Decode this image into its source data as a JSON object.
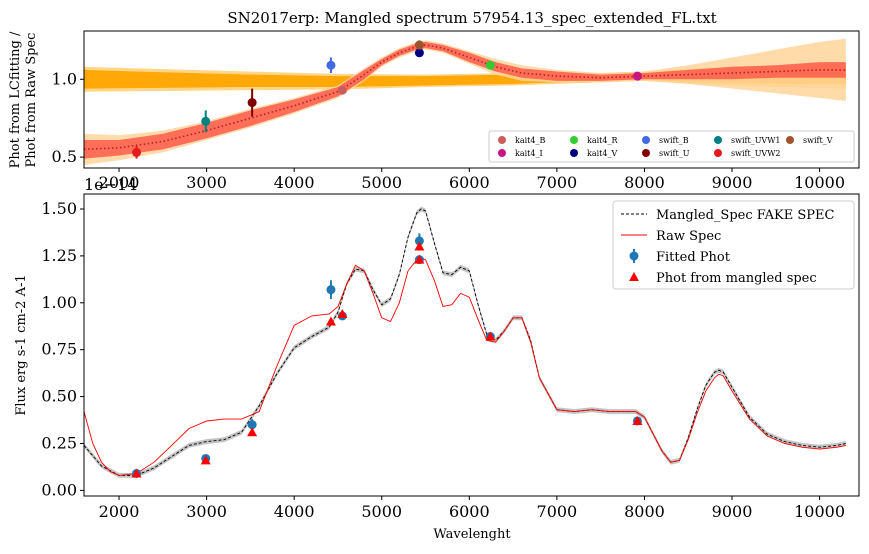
{
  "chart_data": [
    {
      "type": "line",
      "title": "SN2017erp: Mangled spectrum 57954.13_spec_extended_FL.txt",
      "ylabel_line1": "Phot from LCfitting /",
      "ylabel_line2": "Phot from Raw Spec",
      "xlim": [
        1600,
        10450
      ],
      "ylim": [
        0.43,
        1.31
      ],
      "xticks": [
        2000,
        3000,
        4000,
        5000,
        6000,
        7000,
        8000,
        9000,
        10000
      ],
      "yticks": [
        0.5,
        1.0
      ],
      "ytick_labels": [
        "0.5",
        "1.0"
      ],
      "offset_label": "1e−14",
      "ratio_curve": {
        "x": [
          1600,
          2000,
          2500,
          3000,
          3500,
          4000,
          4500,
          4800,
          5000,
          5200,
          5400,
          5500,
          5700,
          6000,
          6300,
          6600,
          7000,
          7500,
          8000,
          8500,
          9000,
          9500,
          10000,
          10300
        ],
        "y": [
          0.55,
          0.56,
          0.6,
          0.67,
          0.75,
          0.83,
          0.92,
          1.03,
          1.11,
          1.17,
          1.21,
          1.22,
          1.2,
          1.14,
          1.08,
          1.04,
          1.02,
          1.01,
          1.02,
          1.03,
          1.04,
          1.05,
          1.06,
          1.06
        ]
      },
      "ratio_band": {
        "x": [
          1600,
          2000,
          2500,
          3000,
          3500,
          4000,
          4500,
          4800,
          5000,
          5200,
          5400,
          5500,
          5700,
          6000,
          6300,
          6600,
          7000,
          7500,
          8000,
          8500,
          9000,
          9500,
          10000,
          10300
        ],
        "width": [
          0.06,
          0.05,
          0.05,
          0.05,
          0.05,
          0.04,
          0.03,
          0.03,
          0.02,
          0.02,
          0.02,
          0.02,
          0.02,
          0.03,
          0.03,
          0.03,
          0.03,
          0.02,
          0.02,
          0.03,
          0.04,
          0.04,
          0.05,
          0.05
        ]
      },
      "ratio_band_outer": {
        "x": [
          1600,
          2000,
          2500,
          3000,
          3500,
          4000,
          4500,
          4800,
          5000,
          5200,
          5400,
          5500,
          5700,
          6000,
          6300,
          6600,
          7000,
          7500,
          8000,
          8500,
          9000,
          9500,
          10000,
          10300
        ],
        "width": [
          0.1,
          0.08,
          0.07,
          0.06,
          0.06,
          0.05,
          0.04,
          0.04,
          0.03,
          0.03,
          0.03,
          0.03,
          0.03,
          0.04,
          0.05,
          0.05,
          0.04,
          0.03,
          0.03,
          0.06,
          0.1,
          0.14,
          0.18,
          0.2
        ]
      },
      "flat_band": {
        "x": [
          1600,
          2500,
          3500,
          4500,
          5500,
          6500,
          7500,
          8000,
          8500,
          9500,
          10300
        ],
        "center": [
          1.0,
          0.995,
          0.99,
          0.985,
          0.99,
          1.0,
          1.01,
          1.02,
          1.02,
          1.02,
          1.02
        ],
        "width": [
          0.06,
          0.05,
          0.04,
          0.035,
          0.03,
          0.03,
          0.02,
          0.02,
          0.04,
          0.05,
          0.05
        ]
      },
      "flat_band_outer": {
        "x": [
          1600,
          2500,
          3500,
          4500,
          5500,
          6500,
          7500,
          8000,
          8500,
          9500,
          10300
        ],
        "center": [
          1.0,
          0.995,
          0.99,
          0.985,
          0.99,
          1.0,
          1.01,
          1.02,
          1.02,
          1.02,
          1.02
        ],
        "width": [
          0.08,
          0.07,
          0.06,
          0.05,
          0.04,
          0.04,
          0.03,
          0.03,
          0.05,
          0.07,
          0.08
        ]
      },
      "points": [
        {
          "name": "kait4_B",
          "x": 4550,
          "y": 0.93,
          "err": 0.0,
          "color": "#cd5c5c"
        },
        {
          "name": "kait4_I",
          "x": 7920,
          "y": 1.02,
          "err": 0.0,
          "color": "#c71585"
        },
        {
          "name": "kait4_R",
          "x": 6240,
          "y": 1.09,
          "err": 0.0,
          "color": "#32cd32"
        },
        {
          "name": "kait4_V",
          "x": 5430,
          "y": 1.17,
          "err": 0.0,
          "color": "#000080"
        },
        {
          "name": "swift_B",
          "x": 4420,
          "y": 1.09,
          "err": 0.05,
          "color": "#4169e1"
        },
        {
          "name": "swift_U",
          "x": 3520,
          "y": 0.85,
          "err": 0.09,
          "color": "#800000"
        },
        {
          "name": "swift_UVW1",
          "x": 2990,
          "y": 0.73,
          "err": 0.07,
          "color": "#008080"
        },
        {
          "name": "swift_UVW2",
          "x": 2200,
          "y": 0.53,
          "err": 0.04,
          "color": "#e41a1c"
        },
        {
          "name": "swift_V",
          "x": 5430,
          "y": 1.22,
          "err": 0.03,
          "color": "#a0522d"
        }
      ],
      "legend": {
        "position": "lower-right",
        "columns": 5,
        "entries": [
          {
            "name": "kait4_B",
            "color": "#cd5c5c"
          },
          {
            "name": "kait4_I",
            "color": "#c71585"
          },
          {
            "name": "kait4_R",
            "color": "#32cd32"
          },
          {
            "name": "kait4_V",
            "color": "#000080"
          },
          {
            "name": "swift_B",
            "color": "#4169e1"
          },
          {
            "name": "swift_U",
            "color": "#800000"
          },
          {
            "name": "swift_UVW1",
            "color": "#008080"
          },
          {
            "name": "swift_UVW2",
            "color": "#e41a1c"
          },
          {
            "name": "swift_V",
            "color": "#a0522d"
          }
        ]
      }
    },
    {
      "type": "line",
      "xlabel": "Wavelenght",
      "ylabel": "Flux erg s-1 cm-2 A-1",
      "xlim": [
        1600,
        10450
      ],
      "ylim": [
        -0.03,
        1.58
      ],
      "xticks": [
        2000,
        3000,
        4000,
        5000,
        6000,
        7000,
        8000,
        9000,
        10000
      ],
      "yticks": [
        0.0,
        0.25,
        0.5,
        0.75,
        1.0,
        1.25,
        1.5
      ],
      "ytick_labels": [
        "0.00",
        "0.25",
        "0.50",
        "0.75",
        "1.00",
        "1.25",
        "1.50"
      ],
      "mangled_spec": {
        "name": "Mangled_Spec FAKE SPEC",
        "color": "#000000",
        "x": [
          1600,
          1800,
          2000,
          2200,
          2400,
          2600,
          2800,
          3000,
          3200,
          3400,
          3600,
          3800,
          4000,
          4200,
          4400,
          4500,
          4600,
          4700,
          4800,
          4900,
          5000,
          5100,
          5200,
          5300,
          5400,
          5450,
          5500,
          5600,
          5700,
          5800,
          5900,
          6000,
          6100,
          6200,
          6300,
          6400,
          6500,
          6600,
          6700,
          6800,
          7000,
          7200,
          7400,
          7600,
          7800,
          7900,
          8000,
          8100,
          8200,
          8300,
          8400,
          8500,
          8600,
          8700,
          8800,
          8850,
          8900,
          9000,
          9200,
          9400,
          9600,
          9800,
          10000,
          10200,
          10300
        ],
        "y": [
          0.24,
          0.13,
          0.08,
          0.08,
          0.12,
          0.18,
          0.24,
          0.26,
          0.27,
          0.31,
          0.45,
          0.62,
          0.76,
          0.82,
          0.87,
          0.95,
          1.1,
          1.18,
          1.17,
          1.07,
          0.99,
          1.02,
          1.15,
          1.35,
          1.48,
          1.5,
          1.49,
          1.32,
          1.16,
          1.15,
          1.19,
          1.17,
          0.99,
          0.83,
          0.8,
          0.85,
          0.92,
          0.92,
          0.8,
          0.6,
          0.43,
          0.42,
          0.43,
          0.42,
          0.42,
          0.42,
          0.39,
          0.3,
          0.21,
          0.15,
          0.16,
          0.28,
          0.43,
          0.56,
          0.63,
          0.64,
          0.63,
          0.55,
          0.39,
          0.3,
          0.26,
          0.24,
          0.23,
          0.24,
          0.25
        ]
      },
      "raw_spec": {
        "name": "Raw Spec",
        "color": "#ff0000",
        "x": [
          1600,
          1700,
          1800,
          1900,
          2000,
          2200,
          2400,
          2600,
          2800,
          3000,
          3200,
          3400,
          3600,
          3800,
          4000,
          4200,
          4400,
          4500,
          4600,
          4700,
          4800,
          4900,
          5000,
          5100,
          5200,
          5300,
          5400,
          5450,
          5500,
          5600,
          5700,
          5800,
          5900,
          6000,
          6100,
          6200,
          6300,
          6400,
          6500,
          6600,
          6700,
          6800,
          7000,
          7200,
          7400,
          7600,
          7800,
          7900,
          8000,
          8100,
          8200,
          8300,
          8400,
          8500,
          8600,
          8700,
          8800,
          8850,
          8900,
          9000,
          9200,
          9400,
          9600,
          9800,
          10000,
          10200,
          10300
        ],
        "y": [
          0.42,
          0.25,
          0.15,
          0.1,
          0.08,
          0.09,
          0.15,
          0.24,
          0.33,
          0.37,
          0.38,
          0.38,
          0.42,
          0.66,
          0.88,
          0.93,
          0.94,
          0.98,
          1.1,
          1.2,
          1.17,
          1.05,
          0.92,
          0.9,
          1.0,
          1.17,
          1.23,
          1.24,
          1.23,
          1.12,
          0.98,
          0.99,
          1.05,
          1.03,
          0.91,
          0.8,
          0.79,
          0.85,
          0.92,
          0.92,
          0.79,
          0.6,
          0.43,
          0.42,
          0.43,
          0.42,
          0.42,
          0.42,
          0.39,
          0.3,
          0.21,
          0.15,
          0.16,
          0.27,
          0.41,
          0.53,
          0.6,
          0.62,
          0.61,
          0.53,
          0.38,
          0.29,
          0.25,
          0.23,
          0.22,
          0.23,
          0.24
        ]
      },
      "fitted_phot": {
        "name": "Fitted Phot",
        "color": "#1f77b4",
        "points": [
          {
            "x": 2200,
            "y": 0.09,
            "err": 0.02
          },
          {
            "x": 2990,
            "y": 0.17,
            "err": 0.02
          },
          {
            "x": 3520,
            "y": 0.35,
            "err": 0.03
          },
          {
            "x": 4420,
            "y": 1.07,
            "err": 0.05
          },
          {
            "x": 4550,
            "y": 0.93,
            "err": 0.02
          },
          {
            "x": 5430,
            "y": 1.33,
            "err": 0.04
          },
          {
            "x": 5430,
            "y": 1.23,
            "err": 0.02
          },
          {
            "x": 6240,
            "y": 0.82,
            "err": 0.01
          },
          {
            "x": 7920,
            "y": 0.37,
            "err": 0.01
          }
        ]
      },
      "phot_from_mangled": {
        "name": "Phot from mangled spec",
        "color": "#ff0000",
        "points": [
          {
            "x": 2200,
            "y": 0.09
          },
          {
            "x": 2990,
            "y": 0.16
          },
          {
            "x": 3520,
            "y": 0.31
          },
          {
            "x": 4420,
            "y": 0.9
          },
          {
            "x": 4550,
            "y": 0.94
          },
          {
            "x": 5430,
            "y": 1.3
          },
          {
            "x": 5430,
            "y": 1.23
          },
          {
            "x": 6240,
            "y": 0.82
          },
          {
            "x": 7920,
            "y": 0.37
          }
        ]
      },
      "legend": {
        "position": "upper-right",
        "entries": [
          {
            "name": "Mangled_Spec FAKE SPEC",
            "style": "dashed-line"
          },
          {
            "name": "Raw Spec",
            "style": "line"
          },
          {
            "name": "Fitted Phot",
            "style": "errorbar-dot"
          },
          {
            "name": "Phot from mangled spec",
            "style": "triangle"
          }
        ]
      }
    }
  ]
}
